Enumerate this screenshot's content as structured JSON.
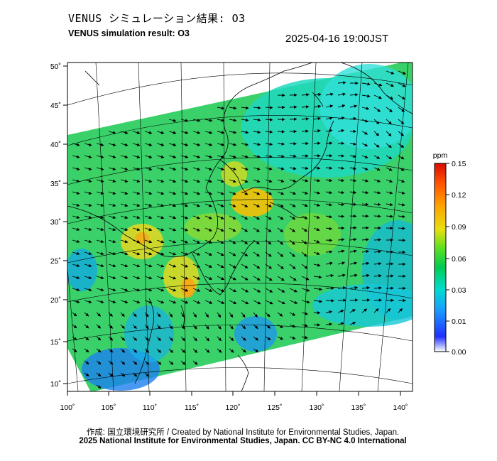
{
  "header": {
    "title_jp": "VENUS シミュレーション結果: O3",
    "title_en": "VENUS simulation result: O3",
    "timestamp": "2025-04-16 19:00JST"
  },
  "map": {
    "lat_ticks": [
      "50˚",
      "45˚",
      "40˚",
      "35˚",
      "30˚",
      "25˚",
      "20˚",
      "15˚",
      "10˚"
    ],
    "lon_ticks": [
      "100˚",
      "105˚",
      "110˚",
      "115˚",
      "120˚",
      "125˚",
      "130˚",
      "135˚",
      "140˚"
    ],
    "lat_range": [
      9,
      51
    ],
    "lon_range": [
      100,
      141
    ],
    "ocean_color": "#ffffff",
    "coastline_color": "#000000",
    "wind_vector_color": "#000000"
  },
  "colorbar": {
    "unit": "ppm",
    "ticks": [
      "0.15",
      "0.12",
      "0.09",
      "0.06",
      "0.03",
      "0.01",
      "0.00"
    ],
    "colors": [
      "#ffffff",
      "#1a3cff",
      "#1aa0ff",
      "#00e0d0",
      "#00d060",
      "#60e020",
      "#e8e010",
      "#ffa000",
      "#ff5000",
      "#e01000"
    ]
  },
  "footer": {
    "credit_jp": "作成: 国立環境研究所 / Created by National Institute for Environmental Studies, Japan.",
    "copyright": "2025 National Institute for Environmental Studies, Japan. CC BY-NC 4.0 International"
  }
}
